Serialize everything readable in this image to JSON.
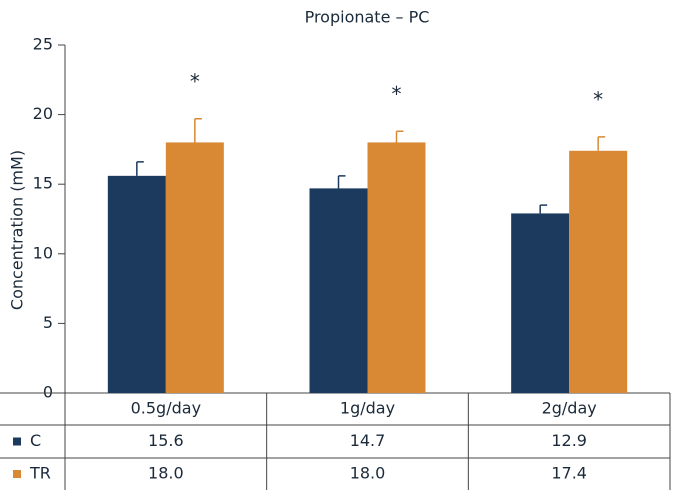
{
  "chart_data": {
    "type": "bar",
    "title": "Propionate – PC",
    "y_label": "Concentration (mM)",
    "categories": [
      "0.5g/day",
      "1g/day",
      "2g/day"
    ],
    "series": [
      {
        "name": "C",
        "color": "#1b3a5e",
        "values": [
          15.6,
          14.7,
          12.9
        ],
        "value_labels": [
          "15.6",
          "14.7",
          "12.9"
        ],
        "errors": [
          1.0,
          0.9,
          0.6
        ]
      },
      {
        "name": "TR",
        "color": "#d98834",
        "values": [
          18.0,
          18.0,
          17.4
        ],
        "value_labels": [
          "18.0",
          "18.0",
          "17.4"
        ],
        "errors": [
          1.7,
          0.8,
          1.0
        ],
        "annotations": [
          "*",
          "*",
          "*"
        ]
      }
    ],
    "ylim": [
      0,
      25
    ],
    "yticks": [
      0,
      5,
      10,
      15,
      20,
      25
    ]
  }
}
